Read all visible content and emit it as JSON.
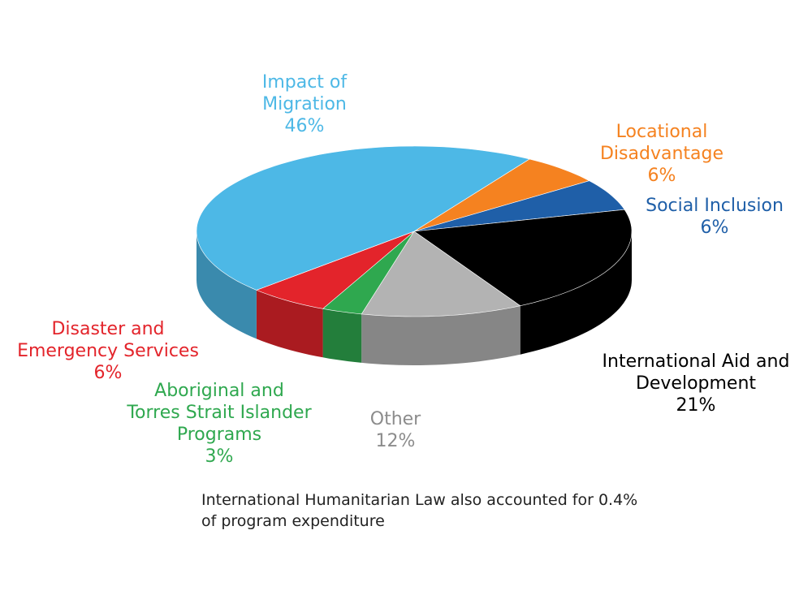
{
  "chart_data": {
    "type": "pie",
    "categories": [
      "Locational Disadvantage",
      "Social Inclusion",
      "International Aid and Development",
      "Other",
      "Aboriginal and Torres Strait Islander Programs",
      "Disaster and Emergency Services",
      "Impact of Migration"
    ],
    "values": [
      6,
      6,
      21,
      12,
      3,
      6,
      46
    ],
    "value_labels": [
      "6%",
      "6%",
      "21%",
      "12%",
      "3%",
      "6%",
      "46%"
    ],
    "colors": [
      "#f58220",
      "#1f5fa8",
      "#000000",
      "#b3b3b3",
      "#2fa84f",
      "#e3242b",
      "#4db8e6"
    ],
    "annotation": "International Humanitarian Law also accounted for 0.4% of program expenditure"
  }
}
